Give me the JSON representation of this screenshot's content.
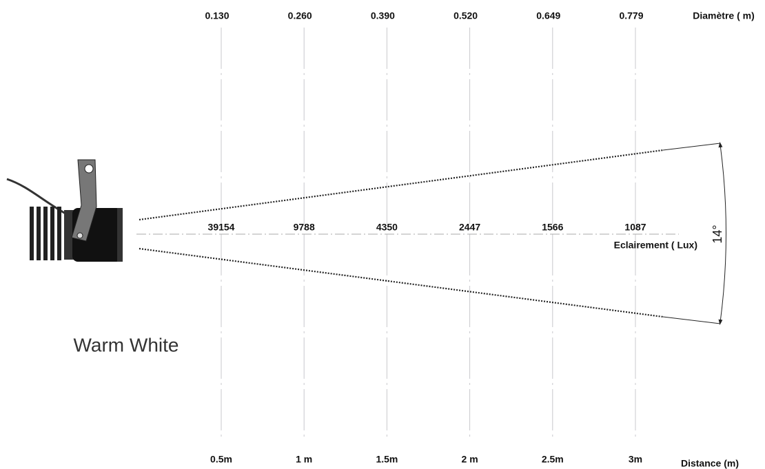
{
  "diameter_label": "Diamètre ( m)",
  "illuminance_label": "Eclairement ( Lux)",
  "distance_label": "Distance (m)",
  "angle": "14°",
  "caption": "Warm White",
  "columns": [
    {
      "diameter": "0.130",
      "lux": "39154",
      "distance": "0.5m"
    },
    {
      "diameter": "0.260",
      "lux": "9788",
      "distance": "1 m"
    },
    {
      "diameter": "0.390",
      "lux": "4350",
      "distance": "1.5m"
    },
    {
      "diameter": "0.520",
      "lux": "2447",
      "distance": "2 m"
    },
    {
      "diameter": "0.649",
      "lux": "1566",
      "distance": "2.5m"
    },
    {
      "diameter": "0.779",
      "lux": "1087",
      "distance": "3m"
    }
  ]
}
